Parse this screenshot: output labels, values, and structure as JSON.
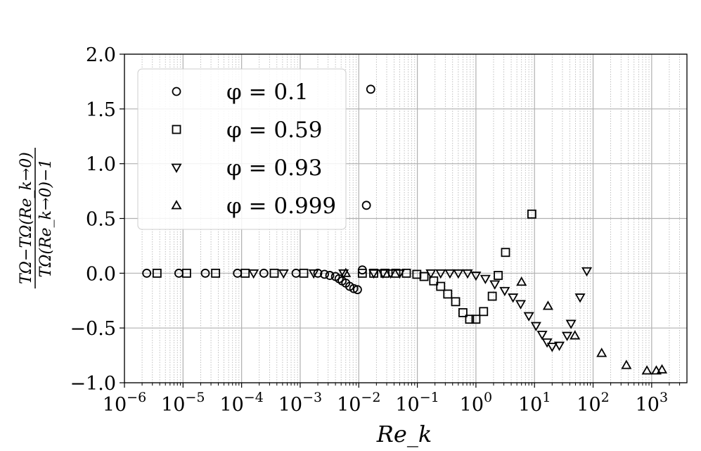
{
  "chart_data": {
    "type": "scatter",
    "x_scale": "log",
    "xlim": [
      1e-06,
      4000
    ],
    "ylim": [
      -1.0,
      2.0
    ],
    "xlabel": "Re_k",
    "ylabel_numerator": "TΩ−TΩ(Re_k→0)",
    "ylabel_denominator": "TΩ(Re_k→0)−1",
    "grid": true,
    "legend_position": "upper-left",
    "x_ticks": [
      {
        "value": 1e-06,
        "base": "10",
        "exp": "−6"
      },
      {
        "value": 1e-05,
        "base": "10",
        "exp": "−5"
      },
      {
        "value": 0.0001,
        "base": "10",
        "exp": "−4"
      },
      {
        "value": 0.001,
        "base": "10",
        "exp": "−3"
      },
      {
        "value": 0.01,
        "base": "10",
        "exp": "−2"
      },
      {
        "value": 0.1,
        "base": "10",
        "exp": "−1"
      },
      {
        "value": 1,
        "base": "10",
        "exp": "0"
      },
      {
        "value": 10,
        "base": "10",
        "exp": "1"
      },
      {
        "value": 100,
        "base": "10",
        "exp": "2"
      },
      {
        "value": 1000,
        "base": "10",
        "exp": "3"
      }
    ],
    "y_ticks": [
      {
        "value": -1.0,
        "label": "−1.0"
      },
      {
        "value": -0.5,
        "label": "−0.5"
      },
      {
        "value": 0.0,
        "label": "0.0"
      },
      {
        "value": 0.5,
        "label": "0.5"
      },
      {
        "value": 1.0,
        "label": "1.0"
      },
      {
        "value": 1.5,
        "label": "1.5"
      },
      {
        "value": 2.0,
        "label": "2.0"
      }
    ],
    "series": [
      {
        "name": "φ = 0.1",
        "marker": "circle",
        "points": [
          [
            2.4e-06,
            0.0
          ],
          [
            8.5e-06,
            0.0
          ],
          [
            2.4e-05,
            0.0
          ],
          [
            8.5e-05,
            0.0
          ],
          [
            0.00024,
            0.0
          ],
          [
            0.00085,
            0.0
          ],
          [
            0.002,
            0.0
          ],
          [
            0.0026,
            -0.01
          ],
          [
            0.0032,
            -0.02
          ],
          [
            0.004,
            -0.03
          ],
          [
            0.0046,
            -0.05
          ],
          [
            0.0052,
            -0.07
          ],
          [
            0.006,
            -0.09
          ],
          [
            0.007,
            -0.12
          ],
          [
            0.0082,
            -0.14
          ],
          [
            0.0095,
            -0.15
          ],
          [
            0.0115,
            0.03
          ],
          [
            0.0135,
            0.62
          ],
          [
            0.016,
            1.68
          ]
        ]
      },
      {
        "name": "φ = 0.59",
        "marker": "square",
        "points": [
          [
            3.6e-06,
            0.0
          ],
          [
            1.15e-05,
            0.0
          ],
          [
            3.6e-05,
            0.0
          ],
          [
            0.000115,
            0.0
          ],
          [
            0.00036,
            0.0
          ],
          [
            0.00115,
            0.0
          ],
          [
            0.0115,
            0.0
          ],
          [
            0.018,
            0.0
          ],
          [
            0.028,
            0.0
          ],
          [
            0.043,
            0.0
          ],
          [
            0.065,
            0.0
          ],
          [
            0.098,
            -0.01
          ],
          [
            0.13,
            -0.03
          ],
          [
            0.19,
            -0.07
          ],
          [
            0.25,
            -0.12
          ],
          [
            0.33,
            -0.19
          ],
          [
            0.45,
            -0.26
          ],
          [
            0.6,
            -0.36
          ],
          [
            0.78,
            -0.42
          ],
          [
            1.0,
            -0.42
          ],
          [
            1.35,
            -0.35
          ],
          [
            1.9,
            -0.21
          ],
          [
            2.4,
            -0.02
          ],
          [
            3.2,
            0.19
          ],
          [
            9.0,
            0.54
          ]
        ]
      },
      {
        "name": "φ = 0.93",
        "marker": "triangle-down",
        "points": [
          [
            0.00016,
            0.0
          ],
          [
            0.00052,
            0.0
          ],
          [
            0.0017,
            0.0
          ],
          [
            0.0055,
            0.0
          ],
          [
            0.018,
            0.0
          ],
          [
            0.026,
            0.0
          ],
          [
            0.035,
            0.0
          ],
          [
            0.05,
            0.0
          ],
          [
            0.17,
            0.0
          ],
          [
            0.25,
            0.0
          ],
          [
            0.36,
            0.0
          ],
          [
            0.5,
            0.0
          ],
          [
            0.72,
            0.0
          ],
          [
            1.0,
            -0.02
          ],
          [
            1.45,
            -0.05
          ],
          [
            2.1,
            -0.1
          ],
          [
            3.1,
            -0.16
          ],
          [
            4.3,
            -0.22
          ],
          [
            5.8,
            -0.28
          ],
          [
            8.0,
            -0.39
          ],
          [
            10.6,
            -0.48
          ],
          [
            13.5,
            -0.56
          ],
          [
            16.4,
            -0.63
          ],
          [
            20.0,
            -0.67
          ],
          [
            26.5,
            -0.66
          ],
          [
            36.0,
            -0.57
          ],
          [
            42.0,
            -0.46
          ],
          [
            60.0,
            -0.22
          ],
          [
            78.0,
            0.02
          ]
        ]
      },
      {
        "name": "φ = 0.999",
        "marker": "triangle-up",
        "points": [
          [
            0.006,
            0.0
          ],
          [
            6.0,
            -0.08
          ],
          [
            17.0,
            -0.3
          ],
          [
            49.0,
            -0.57
          ],
          [
            140.0,
            -0.73
          ],
          [
            370.0,
            -0.84
          ],
          [
            830.0,
            -0.89
          ],
          [
            1200.0,
            -0.89
          ],
          [
            1500.0,
            -0.88
          ]
        ]
      }
    ]
  }
}
